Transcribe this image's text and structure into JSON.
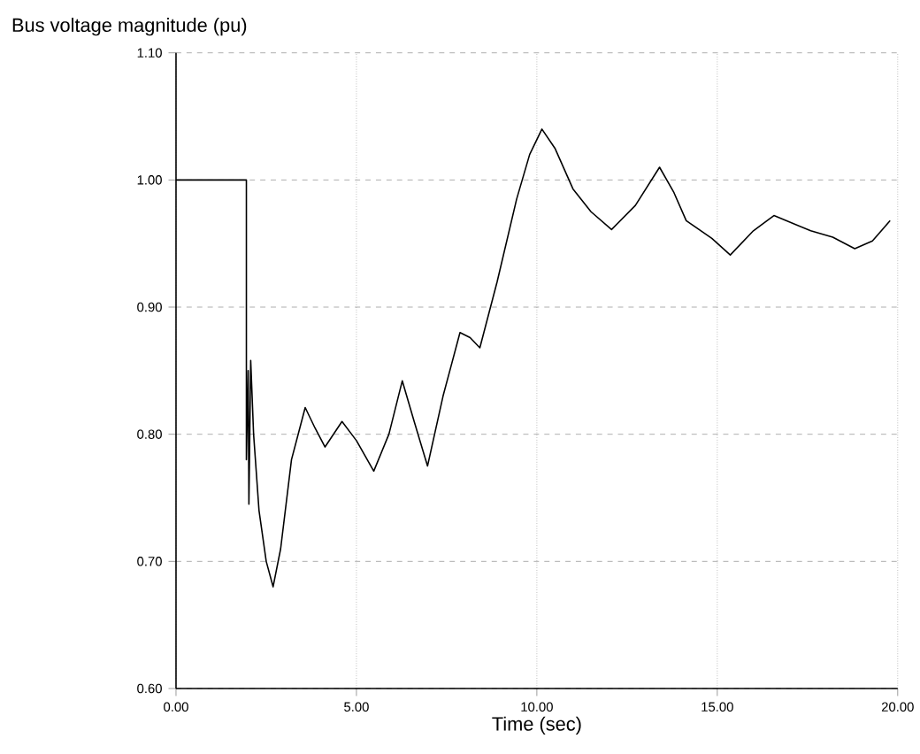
{
  "chart_data": {
    "type": "line",
    "title": "Bus voltage magnitude (pu)",
    "xlabel": "Time (sec)",
    "xlim": [
      0,
      20
    ],
    "ylim": [
      0.6,
      1.1
    ],
    "xticks": [
      {
        "value": 0,
        "label": "0.00"
      },
      {
        "value": 5,
        "label": "5.00"
      },
      {
        "value": 10,
        "label": "10.00"
      },
      {
        "value": 15,
        "label": "15.00"
      },
      {
        "value": 20,
        "label": "20.00"
      }
    ],
    "yticks": [
      {
        "value": 0.6,
        "label": "0.60"
      },
      {
        "value": 0.7,
        "label": "0.70"
      },
      {
        "value": 0.8,
        "label": "0.80"
      },
      {
        "value": 0.9,
        "label": "0.90"
      },
      {
        "value": 1.0,
        "label": "1.00"
      },
      {
        "value": 1.1,
        "label": "1.10"
      }
    ],
    "grid": true,
    "marker": "none",
    "line_style": "solid",
    "series": [
      {
        "color": "#000000",
        "x": [
          0,
          1.95,
          1.95,
          2.0,
          2.02,
          2.07,
          2.15,
          2.3,
          2.5,
          2.69,
          2.9,
          3.2,
          3.58,
          3.85,
          4.13,
          4.6,
          5.0,
          5.48,
          5.9,
          6.27,
          6.6,
          6.97,
          7.4,
          7.87,
          8.15,
          8.42,
          8.9,
          9.44,
          9.8,
          10.14,
          10.5,
          11.0,
          11.5,
          12.07,
          12.73,
          13.4,
          13.8,
          14.14,
          14.85,
          15.36,
          16.0,
          16.57,
          17.59,
          18.2,
          18.81,
          19.3,
          19.79
        ],
        "values": [
          1.0,
          1.0,
          0.78,
          0.85,
          0.745,
          0.858,
          0.8,
          0.74,
          0.7,
          0.68,
          0.71,
          0.78,
          0.821,
          0.805,
          0.79,
          0.81,
          0.795,
          0.771,
          0.8,
          0.842,
          0.81,
          0.775,
          0.83,
          0.88,
          0.876,
          0.868,
          0.92,
          0.985,
          1.02,
          1.04,
          1.025,
          0.993,
          0.975,
          0.961,
          0.98,
          1.01,
          0.99,
          0.968,
          0.954,
          0.941,
          0.96,
          0.972,
          0.96,
          0.955,
          0.946,
          0.952,
          0.968
        ]
      }
    ]
  }
}
